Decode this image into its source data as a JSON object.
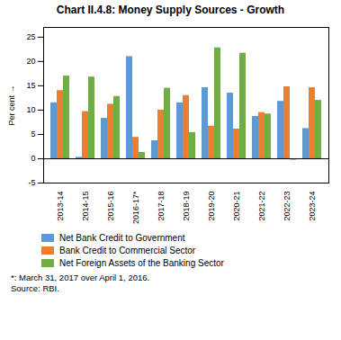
{
  "chart_data": {
    "type": "bar",
    "title": "Chart II.4.8: Money Supply Sources - Growth",
    "ylabel": "Per cent",
    "categories": [
      "2013-14",
      "2014-15",
      "2015-16",
      "2016-17*",
      "2017-18",
      "2018-19",
      "2019-20",
      "2020-21",
      "2021-22",
      "2022-23",
      "2023-24"
    ],
    "series": [
      {
        "name": "Net Bank Credit to Government",
        "color": "#5B9BD5",
        "values": [
          11.5,
          0.3,
          8.3,
          21.0,
          3.7,
          11.5,
          14.6,
          13.5,
          8.7,
          11.8,
          6.2
        ]
      },
      {
        "name": "Bank Credit to Commercial Sector",
        "color": "#ED7D31",
        "values": [
          14.0,
          9.7,
          11.2,
          4.4,
          10.0,
          13.0,
          6.7,
          6.1,
          9.5,
          14.8,
          14.6
        ]
      },
      {
        "name": "Net Foreign Assets of the Banking Sector",
        "color": "#70AD47",
        "values": [
          17.0,
          16.8,
          12.8,
          1.3,
          14.5,
          5.4,
          22.8,
          21.7,
          9.2,
          -0.3,
          12.0
        ]
      }
    ],
    "ylim": [
      -5,
      27
    ],
    "yticks": [
      -5,
      0,
      5,
      10,
      15,
      20,
      25
    ],
    "grid": false,
    "legend": "bottom",
    "footnote": "*: March 31, 2017 over April 1, 2016.\nSource: RBI."
  }
}
